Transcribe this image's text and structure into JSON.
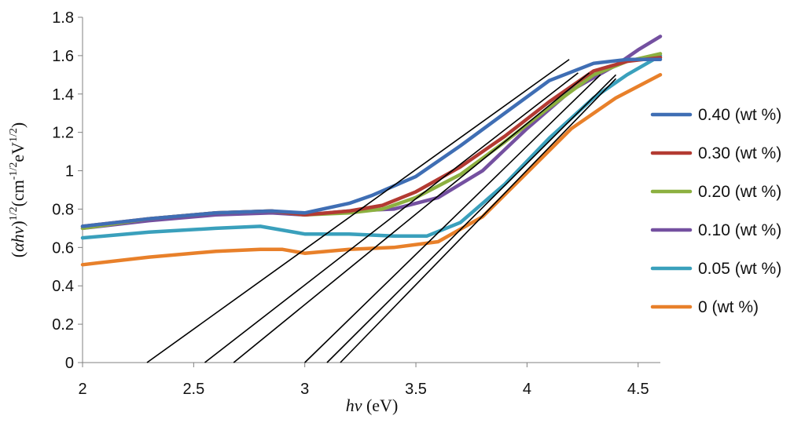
{
  "chart_data": {
    "type": "line",
    "title": "",
    "xlabel": "hv (eV)",
    "ylabel": "(αhv)^1/2(cm^-1/2eV^1/2)",
    "xlim": [
      2,
      4.6
    ],
    "ylim": [
      0,
      1.8
    ],
    "x_ticks": [
      "2",
      "2.5",
      "3",
      "3.5",
      "4",
      "4.5"
    ],
    "y_ticks": [
      "0",
      "0.2",
      "0.4",
      "0.6",
      "0.8",
      "1",
      "1.2",
      "1.4",
      "1.6",
      "1.8"
    ],
    "legend_position": "right",
    "series": [
      {
        "name": "0.40 (wt %)",
        "color": "#3f6eb4",
        "x": [
          2.0,
          2.3,
          2.6,
          2.85,
          3.0,
          3.2,
          3.3,
          3.5,
          3.7,
          3.9,
          4.1,
          4.3,
          4.45,
          4.6
        ],
        "y": [
          0.71,
          0.75,
          0.78,
          0.79,
          0.78,
          0.83,
          0.87,
          0.97,
          1.13,
          1.3,
          1.47,
          1.56,
          1.58,
          1.58
        ]
      },
      {
        "name": "0.30 (wt %)",
        "color": "#b33a32",
        "x": [
          2.0,
          2.3,
          2.6,
          2.85,
          3.0,
          3.2,
          3.35,
          3.5,
          3.7,
          3.9,
          4.1,
          4.3,
          4.45,
          4.6
        ],
        "y": [
          0.71,
          0.75,
          0.78,
          0.79,
          0.77,
          0.79,
          0.82,
          0.89,
          1.02,
          1.18,
          1.36,
          1.52,
          1.57,
          1.59
        ]
      },
      {
        "name": "0.20 (wt %)",
        "color": "#8cb040",
        "x": [
          2.0,
          2.3,
          2.6,
          2.85,
          3.0,
          3.2,
          3.35,
          3.5,
          3.7,
          3.9,
          4.1,
          4.3,
          4.45,
          4.6
        ],
        "y": [
          0.7,
          0.75,
          0.78,
          0.79,
          0.77,
          0.78,
          0.8,
          0.86,
          0.98,
          1.15,
          1.33,
          1.5,
          1.57,
          1.61
        ]
      },
      {
        "name": "0.10 (wt %)",
        "color": "#7450a0",
        "x": [
          2.0,
          2.3,
          2.6,
          2.85,
          3.0,
          3.2,
          3.4,
          3.6,
          3.8,
          4.0,
          4.2,
          4.4,
          4.5,
          4.6
        ],
        "y": [
          0.7,
          0.74,
          0.77,
          0.78,
          0.77,
          0.79,
          0.8,
          0.86,
          1.0,
          1.22,
          1.42,
          1.55,
          1.63,
          1.7
        ]
      },
      {
        "name": "0.05 (wt %)",
        "color": "#3aa0bc",
        "x": [
          2.0,
          2.3,
          2.6,
          2.8,
          3.0,
          3.2,
          3.4,
          3.55,
          3.7,
          3.9,
          4.1,
          4.3,
          4.45,
          4.6
        ],
        "y": [
          0.65,
          0.68,
          0.7,
          0.71,
          0.67,
          0.67,
          0.66,
          0.66,
          0.73,
          0.93,
          1.17,
          1.38,
          1.5,
          1.6
        ]
      },
      {
        "name": "0 (wt %)",
        "color": "#e8802a",
        "x": [
          2.0,
          2.3,
          2.6,
          2.8,
          2.9,
          3.0,
          3.2,
          3.4,
          3.6,
          3.8,
          4.0,
          4.2,
          4.4,
          4.6
        ],
        "y": [
          0.51,
          0.55,
          0.58,
          0.59,
          0.59,
          0.57,
          0.59,
          0.6,
          0.63,
          0.76,
          0.99,
          1.22,
          1.38,
          1.5
        ]
      }
    ],
    "tangent_lines": [
      {
        "x": [
          2.29,
          4.19
        ],
        "y": [
          0.0,
          1.58
        ]
      },
      {
        "x": [
          2.55,
          4.23
        ],
        "y": [
          0.0,
          1.51
        ]
      },
      {
        "x": [
          2.68,
          4.28
        ],
        "y": [
          0.0,
          1.51
        ]
      },
      {
        "x": [
          3.0,
          4.33
        ],
        "y": [
          0.0,
          1.5
        ]
      },
      {
        "x": [
          3.1,
          4.4
        ],
        "y": [
          0.0,
          1.5
        ]
      },
      {
        "x": [
          3.16,
          4.4
        ],
        "y": [
          0.0,
          1.48
        ]
      }
    ]
  }
}
